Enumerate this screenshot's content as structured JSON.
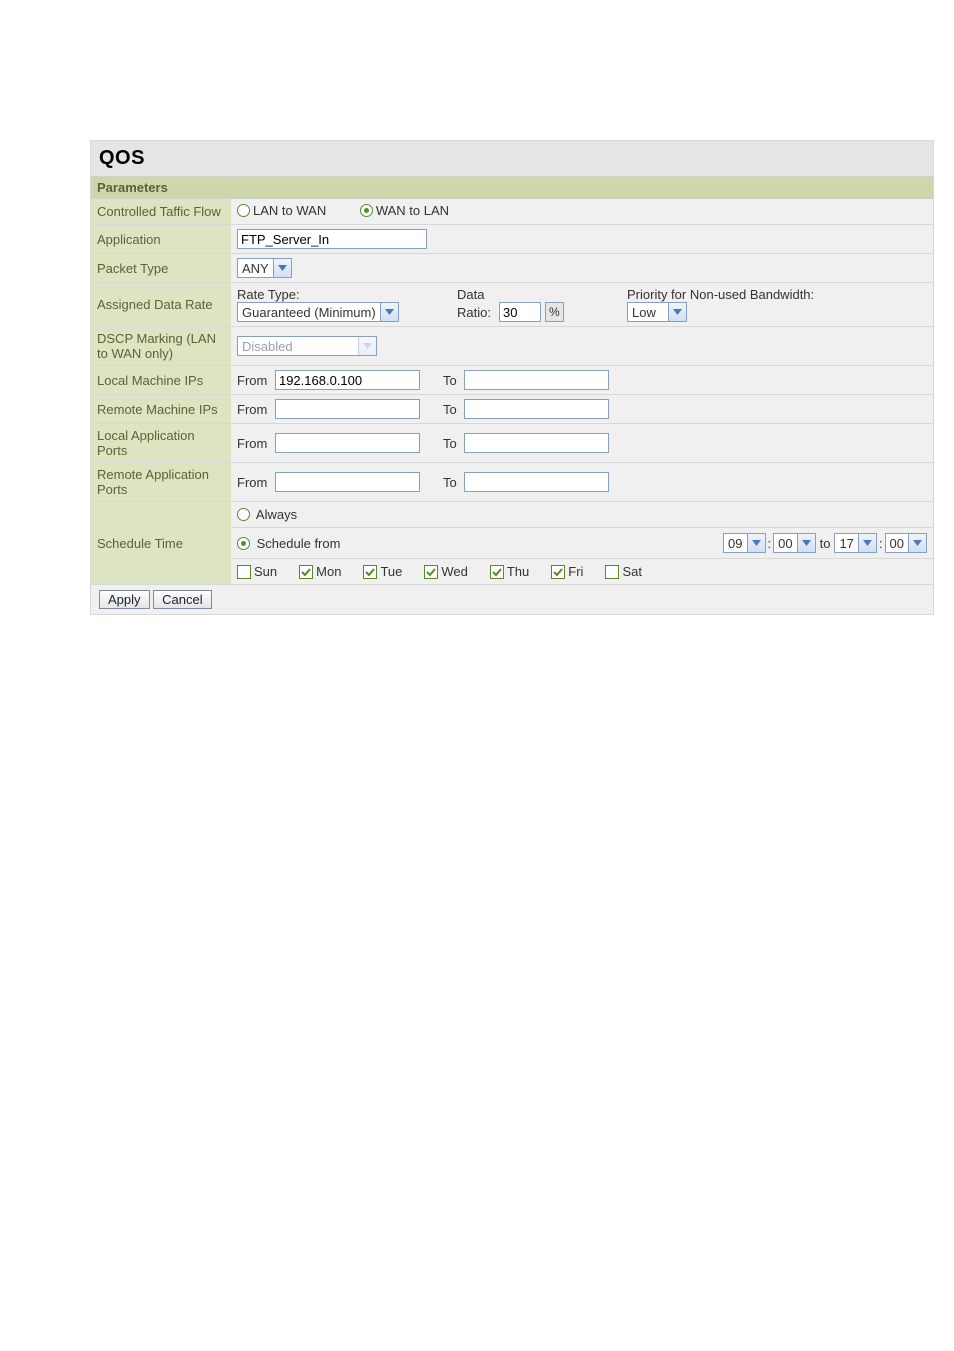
{
  "title": "QOS",
  "sectionHeader": "Parameters",
  "rows": {
    "controlled_traffic": {
      "label": "Controlled Taffic Flow",
      "options": {
        "lan_to_wan": "LAN to WAN",
        "wan_to_lan": "WAN to LAN"
      },
      "selected": "wan_to_lan"
    },
    "application": {
      "label": "Application",
      "value": "FTP_Server_In"
    },
    "packet_type": {
      "label": "Packet Type",
      "value": "ANY"
    },
    "assigned_data_rate": {
      "label": "Assigned Data Rate",
      "rate_type_label": "Rate Type:",
      "rate_type_value": "Guaranteed (Minimum)",
      "data_ratio_label_a": "Data",
      "data_ratio_label_b": "Ratio:",
      "data_ratio_value": "30",
      "data_ratio_unit": "%",
      "priority_label": "Priority for Non-used Bandwidth:",
      "priority_value": "Low"
    },
    "dscp": {
      "label": "DSCP Marking (LAN to WAN only)",
      "value": "Disabled"
    },
    "local_ips": {
      "label": "Local Machine IPs",
      "from_label": "From",
      "from_value": "192.168.0.100",
      "to_label": "To",
      "to_value": ""
    },
    "remote_ips": {
      "label": "Remote Machine IPs",
      "from_label": "From",
      "from_value": "",
      "to_label": "To",
      "to_value": ""
    },
    "local_ports": {
      "label": "Local Application Ports",
      "from_label": "From",
      "from_value": "",
      "to_label": "To",
      "to_value": ""
    },
    "remote_ports": {
      "label": "Remote Application Ports",
      "from_label": "From",
      "from_value": "",
      "to_label": "To",
      "to_value": ""
    },
    "schedule": {
      "label": "Schedule Time",
      "always_label": "Always",
      "schedule_from_label": "Schedule from",
      "time_sep": ":",
      "to_label": "to",
      "from_hour": "09",
      "from_min": "00",
      "to_hour": "17",
      "to_min": "00",
      "days": [
        {
          "label": "Sun",
          "checked": false
        },
        {
          "label": "Mon",
          "checked": true
        },
        {
          "label": "Tue",
          "checked": true
        },
        {
          "label": "Wed",
          "checked": true
        },
        {
          "label": "Thu",
          "checked": true
        },
        {
          "label": "Fri",
          "checked": true
        },
        {
          "label": "Sat",
          "checked": false
        }
      ]
    }
  },
  "buttons": {
    "apply": "Apply",
    "cancel": "Cancel"
  },
  "colors": {
    "header_bg": "#e5e5e5",
    "section_bg": "#cdd7a9",
    "label_bg": "#dde4c1",
    "value_bg": "#f0f0f0",
    "label_text": "#5b6236",
    "input_border": "#889fbd",
    "radio_green": "#5a8a28",
    "chevron_blue": "#4b76b8"
  }
}
